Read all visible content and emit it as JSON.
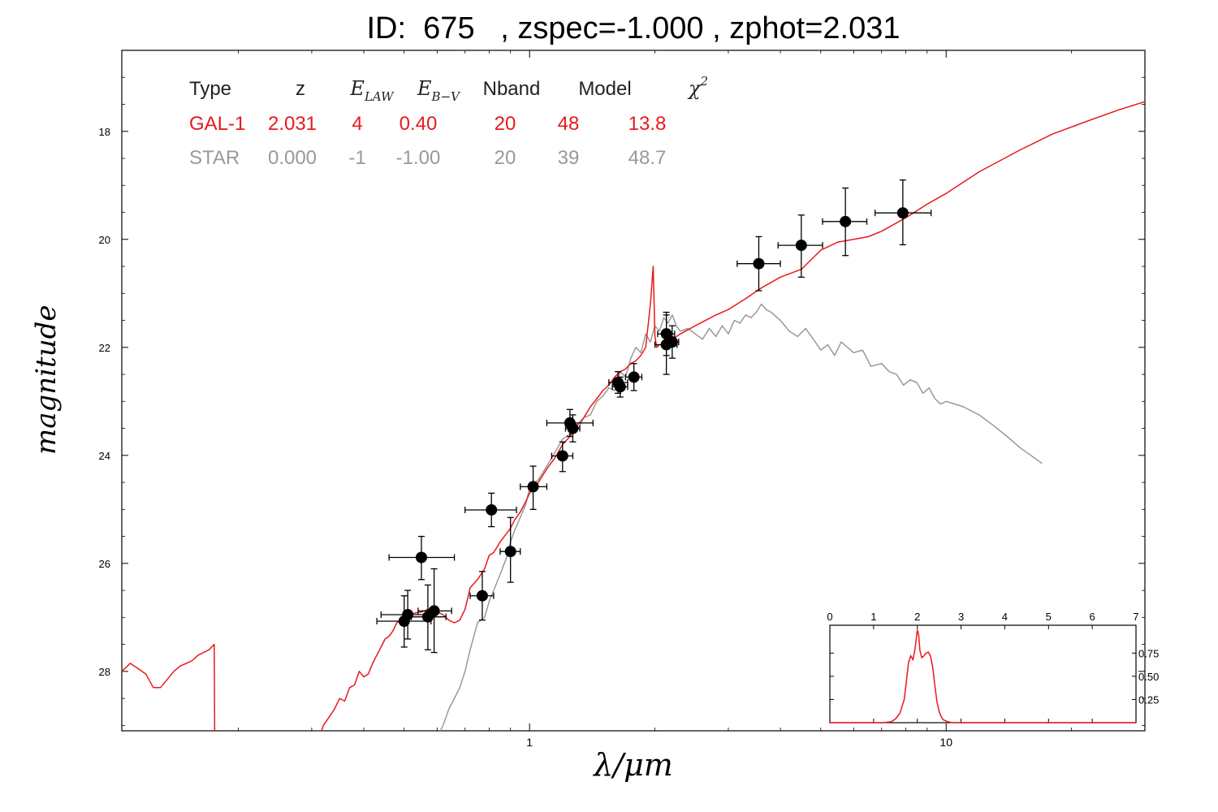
{
  "title": "ID:  675   , zspec=-1.000 , zphot=2.031",
  "chart_data": {
    "type": "scatter",
    "title": "ID:  675   , zspec=-1.000 , zphot=2.031",
    "xlabel": "λ/μm",
    "ylabel": "magnitude",
    "x_scale": "log",
    "xlim": [
      0.105,
      30
    ],
    "ylim": [
      29.1,
      16.5
    ],
    "x_ticks": [
      1,
      10
    ],
    "x_tick_labels": [
      "1",
      "10"
    ],
    "y_ticks": [
      18,
      20,
      22,
      24,
      26,
      28
    ],
    "y_tick_labels": [
      "18",
      "20",
      "22",
      "24",
      "26",
      "28"
    ],
    "grid": false,
    "legend_table": {
      "headers": [
        "Type",
        "z",
        "E",
        "E",
        "Nband",
        "Model",
        "χ"
      ],
      "header_subscripts": [
        "",
        "",
        "LAW",
        "B−V",
        "",
        "",
        ""
      ],
      "header_superscripts": [
        "",
        "",
        "",
        "",
        "",
        "",
        "2"
      ],
      "rows": [
        {
          "color": "#e8191c",
          "cells": [
            "GAL-1",
            "2.031",
            "4",
            "0.40",
            "20",
            "48",
            "13.8"
          ]
        },
        {
          "color": "#999999",
          "cells": [
            "STAR",
            "0.000",
            "-1",
            "-1.00",
            "20",
            "39",
            "48.7"
          ]
        }
      ]
    },
    "observed_points": [
      {
        "x": 0.5,
        "y": 27.07,
        "xerr": [
          0.43,
          0.58
        ],
        "yerr": [
          26.6,
          27.55
        ]
      },
      {
        "x": 0.51,
        "y": 26.95,
        "xerr": [
          0.44,
          0.59
        ],
        "yerr": [
          26.5,
          27.4
        ]
      },
      {
        "x": 0.55,
        "y": 25.89,
        "xerr": [
          0.46,
          0.66
        ],
        "yerr": [
          25.5,
          26.3
        ]
      },
      {
        "x": 0.57,
        "y": 26.99,
        "xerr": [
          0.52,
          0.63
        ],
        "yerr": [
          26.4,
          27.6
        ]
      },
      {
        "x": 0.59,
        "y": 26.88,
        "xerr": [
          0.54,
          0.65
        ],
        "yerr": [
          26.1,
          27.65
        ]
      },
      {
        "x": 0.77,
        "y": 26.6,
        "xerr": [
          0.72,
          0.82
        ],
        "yerr": [
          26.15,
          27.05
        ]
      },
      {
        "x": 0.81,
        "y": 25.01,
        "xerr": [
          0.7,
          0.93
        ],
        "yerr": [
          24.7,
          25.32
        ]
      },
      {
        "x": 0.9,
        "y": 25.78,
        "xerr": [
          0.85,
          0.95
        ],
        "yerr": [
          25.15,
          26.35
        ]
      },
      {
        "x": 1.02,
        "y": 24.58,
        "xerr": [
          0.95,
          1.1
        ],
        "yerr": [
          24.2,
          25.0
        ]
      },
      {
        "x": 1.2,
        "y": 24.01,
        "xerr": [
          1.13,
          1.27
        ],
        "yerr": [
          23.75,
          24.3
        ]
      },
      {
        "x": 1.25,
        "y": 23.4,
        "xerr": [
          1.1,
          1.42
        ],
        "yerr": [
          23.15,
          23.65
        ]
      },
      {
        "x": 1.27,
        "y": 23.5,
        "xerr": [
          1.22,
          1.32
        ],
        "yerr": [
          23.25,
          23.75
        ]
      },
      {
        "x": 1.63,
        "y": 22.65,
        "xerr": [
          1.55,
          1.72
        ],
        "yerr": [
          22.45,
          22.85
        ]
      },
      {
        "x": 1.65,
        "y": 22.73,
        "xerr": [
          1.58,
          1.72
        ],
        "yerr": [
          22.55,
          22.92
        ]
      },
      {
        "x": 1.78,
        "y": 22.55,
        "xerr": [
          1.7,
          1.86
        ],
        "yerr": [
          22.3,
          22.8
        ]
      },
      {
        "x": 2.13,
        "y": 21.75,
        "xerr": [
          2.03,
          2.23
        ],
        "yerr": [
          21.35,
          22.15
        ]
      },
      {
        "x": 2.13,
        "y": 21.95,
        "xerr": [
          2.0,
          2.26
        ],
        "yerr": [
          21.4,
          22.5
        ]
      },
      {
        "x": 2.2,
        "y": 21.9,
        "xerr": [
          2.12,
          2.28
        ],
        "yerr": [
          21.6,
          22.2
        ]
      },
      {
        "x": 3.55,
        "y": 20.45,
        "xerr": [
          3.15,
          4.0
        ],
        "yerr": [
          19.95,
          20.95
        ]
      },
      {
        "x": 4.49,
        "y": 20.11,
        "xerr": [
          3.95,
          5.05
        ],
        "yerr": [
          19.55,
          20.7
        ]
      },
      {
        "x": 5.73,
        "y": 19.67,
        "xerr": [
          5.05,
          6.45
        ],
        "yerr": [
          19.05,
          20.3
        ]
      },
      {
        "x": 7.87,
        "y": 19.51,
        "xerr": [
          6.75,
          9.2
        ],
        "yerr": [
          18.9,
          20.1
        ]
      }
    ],
    "series": [
      {
        "name": "GAL-1",
        "color": "#e8191c",
        "x": [
          0.105,
          0.11,
          0.115,
          0.12,
          0.125,
          0.13,
          0.135,
          0.14,
          0.145,
          0.15,
          0.155,
          0.16,
          0.165,
          0.17,
          0.175,
          0.1755,
          0.18,
          0.19,
          0.2,
          0.22,
          0.25,
          0.28,
          0.3,
          0.31,
          0.32,
          0.33,
          0.34,
          0.35,
          0.36,
          0.37,
          0.38,
          0.39,
          0.4,
          0.41,
          0.42,
          0.43,
          0.44,
          0.45,
          0.46,
          0.47,
          0.48,
          0.5,
          0.52,
          0.55,
          0.57,
          0.6,
          0.62,
          0.64,
          0.66,
          0.68,
          0.7,
          0.72,
          0.75,
          0.78,
          0.8,
          0.82,
          0.85,
          0.88,
          0.9,
          0.92,
          0.95,
          0.98,
          1.0,
          1.05,
          1.1,
          1.15,
          1.2,
          1.25,
          1.3,
          1.35,
          1.4,
          1.45,
          1.5,
          1.55,
          1.6,
          1.65,
          1.7,
          1.75,
          1.8,
          1.85,
          1.9,
          1.95,
          1.98,
          2.0,
          2.02,
          2.05,
          2.1,
          2.2,
          2.3,
          2.5,
          2.8,
          3.0,
          3.3,
          3.6,
          4.0,
          4.5,
          5.0,
          5.5,
          6.0,
          6.5,
          7.0,
          8.0,
          9.0,
          10.0,
          12.0,
          15.0,
          18.0,
          22.0,
          26.0,
          30.0
        ],
        "y": [
          28.0,
          27.85,
          27.95,
          28.05,
          28.3,
          28.3,
          28.15,
          28.0,
          27.9,
          27.85,
          27.8,
          27.7,
          27.65,
          27.6,
          27.5,
          29.5,
          29.5,
          29.5,
          29.5,
          29.5,
          29.5,
          29.5,
          29.5,
          29.3,
          29.0,
          28.85,
          28.7,
          28.5,
          28.55,
          28.3,
          28.25,
          28.0,
          28.1,
          28.05,
          27.85,
          27.7,
          27.55,
          27.4,
          27.35,
          27.25,
          27.1,
          27.0,
          26.93,
          26.9,
          26.85,
          26.9,
          26.95,
          27.05,
          27.1,
          27.05,
          26.85,
          26.45,
          26.3,
          26.1,
          25.85,
          25.8,
          25.6,
          25.45,
          25.35,
          25.2,
          25.05,
          24.85,
          24.7,
          24.5,
          24.25,
          24.05,
          23.8,
          23.65,
          23.45,
          23.3,
          23.1,
          22.95,
          22.8,
          22.7,
          22.55,
          22.45,
          22.4,
          22.3,
          22.25,
          22.15,
          22.0,
          21.2,
          20.5,
          21.8,
          22.0,
          21.95,
          21.95,
          21.85,
          21.75,
          21.6,
          21.4,
          21.3,
          21.1,
          20.9,
          20.7,
          20.55,
          20.2,
          20.05,
          20.0,
          19.95,
          19.85,
          19.6,
          19.35,
          19.15,
          18.75,
          18.35,
          18.05,
          17.8,
          17.6,
          17.45
        ]
      },
      {
        "name": "STAR",
        "color": "#999999",
        "x": [
          0.6,
          0.62,
          0.64,
          0.66,
          0.68,
          0.7,
          0.72,
          0.75,
          0.78,
          0.8,
          0.82,
          0.85,
          0.88,
          0.9,
          0.92,
          0.95,
          0.98,
          1.0,
          1.05,
          1.1,
          1.15,
          1.2,
          1.25,
          1.3,
          1.35,
          1.4,
          1.45,
          1.5,
          1.55,
          1.6,
          1.65,
          1.7,
          1.75,
          1.8,
          1.85,
          1.9,
          1.95,
          2.0,
          2.05,
          2.1,
          2.15,
          2.2,
          2.25,
          2.3,
          2.4,
          2.5,
          2.6,
          2.7,
          2.8,
          2.9,
          3.0,
          3.1,
          3.2,
          3.3,
          3.4,
          3.5,
          3.6,
          3.7,
          3.8,
          4.0,
          4.2,
          4.4,
          4.6,
          4.8,
          5.0,
          5.2,
          5.4,
          5.6,
          5.8,
          6.0,
          6.3,
          6.6,
          7.0,
          7.3,
          7.6,
          7.9,
          8.2,
          8.5,
          8.8,
          9.1,
          9.4,
          9.7,
          10.0,
          10.5,
          11.0,
          12.0,
          13.0,
          14.0,
          15.0,
          17.0
        ],
        "y": [
          29.2,
          29.0,
          28.7,
          28.5,
          28.3,
          28.0,
          27.6,
          27.1,
          27.0,
          26.7,
          26.5,
          26.2,
          25.9,
          25.6,
          25.4,
          25.15,
          24.9,
          24.6,
          24.45,
          24.2,
          23.95,
          23.7,
          23.6,
          23.55,
          23.3,
          23.25,
          23.0,
          22.9,
          22.75,
          22.8,
          22.45,
          22.55,
          22.2,
          22.0,
          22.1,
          21.75,
          21.9,
          21.6,
          21.7,
          21.45,
          21.55,
          21.4,
          21.6,
          21.7,
          21.65,
          21.75,
          21.85,
          21.65,
          21.8,
          21.6,
          21.75,
          21.5,
          21.55,
          21.4,
          21.45,
          21.35,
          21.2,
          21.3,
          21.35,
          21.5,
          21.7,
          21.8,
          21.65,
          21.85,
          22.05,
          21.95,
          22.15,
          21.9,
          22.0,
          22.1,
          22.05,
          22.35,
          22.3,
          22.45,
          22.5,
          22.7,
          22.6,
          22.65,
          22.85,
          22.75,
          22.95,
          23.05,
          23.0,
          23.05,
          23.1,
          23.25,
          23.45,
          23.65,
          23.85,
          24.15
        ]
      }
    ],
    "inset": {
      "type": "line",
      "color": "#e8191c",
      "xlim": [
        0,
        7
      ],
      "ylim": [
        0,
        1.05
      ],
      "x_ticks": [
        0,
        1,
        2,
        3,
        4,
        5,
        6,
        7
      ],
      "x_tick_labels": [
        "0",
        "1",
        "2",
        "3",
        "4",
        "5",
        "6",
        "7"
      ],
      "y_ticks": [
        0.25,
        0.5,
        0.75
      ],
      "y_tick_labels": [
        "0.25",
        "0.50",
        "0.75"
      ],
      "x": [
        0.0,
        1.2,
        1.4,
        1.5,
        1.6,
        1.7,
        1.75,
        1.8,
        1.85,
        1.9,
        1.95,
        2.0,
        2.03,
        2.06,
        2.1,
        2.15,
        2.2,
        2.25,
        2.3,
        2.35,
        2.4,
        2.45,
        2.5,
        2.55,
        2.6,
        2.7,
        2.8,
        3.0,
        7.0
      ],
      "y": [
        0.0,
        0.0,
        0.01,
        0.04,
        0.1,
        0.25,
        0.45,
        0.65,
        0.72,
        0.68,
        0.8,
        1.0,
        0.95,
        0.78,
        0.7,
        0.72,
        0.75,
        0.76,
        0.72,
        0.6,
        0.4,
        0.22,
        0.12,
        0.06,
        0.03,
        0.01,
        0.0,
        0.0,
        0.0
      ]
    }
  }
}
